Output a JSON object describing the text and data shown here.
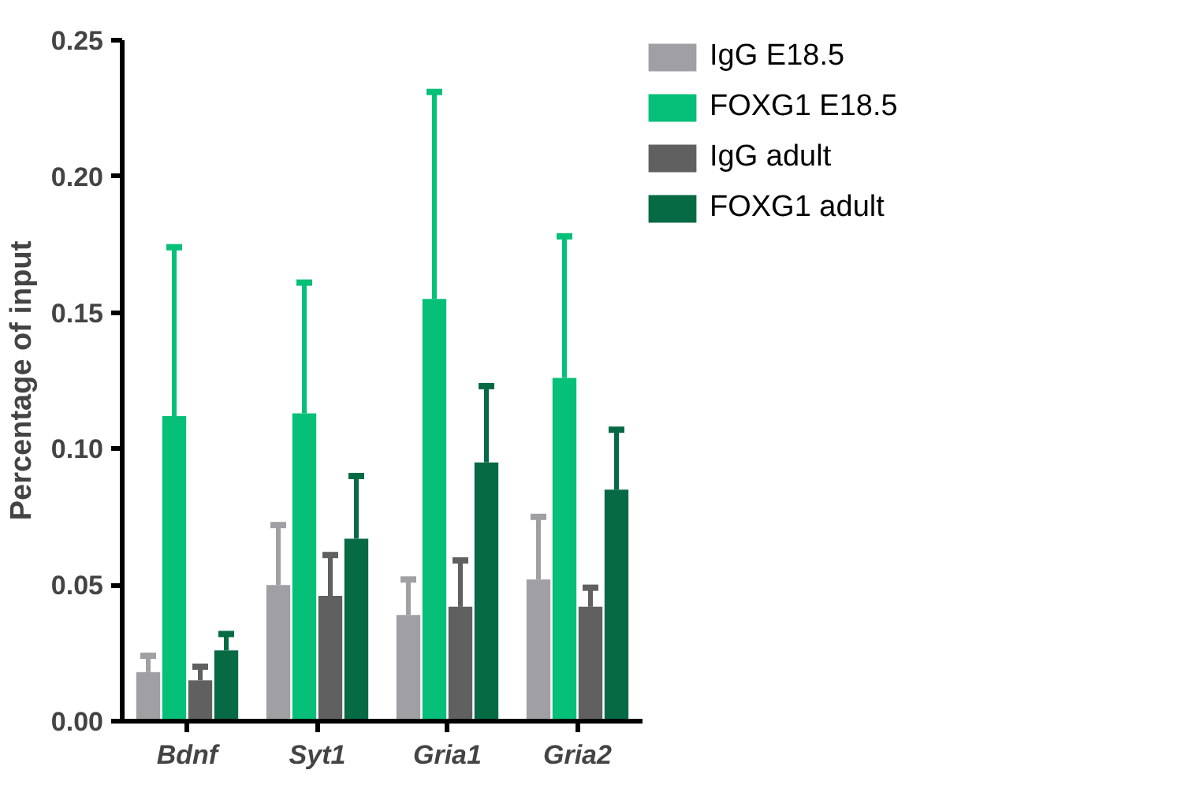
{
  "chart_data": {
    "type": "bar",
    "ylabel": "Percentage of input",
    "categories": [
      "Bdnf",
      "Syt1",
      "Gria1",
      "Gria2"
    ],
    "series": [
      {
        "name": "IgG E18.5",
        "color": "#a0a0a4",
        "values": [
          0.018,
          0.05,
          0.039,
          0.052
        ],
        "errors": [
          [
            0.018,
            0.024
          ],
          [
            0.05,
            0.072
          ],
          [
            0.039,
            0.052
          ],
          [
            0.052,
            0.075
          ]
        ]
      },
      {
        "name": "FOXG1 E18.5",
        "color": "#06bf78",
        "values": [
          0.112,
          0.113,
          0.155,
          0.126
        ],
        "errors": [
          [
            0.112,
            0.174
          ],
          [
            0.113,
            0.161
          ],
          [
            0.155,
            0.231
          ],
          [
            0.126,
            0.178
          ]
        ]
      },
      {
        "name": "IgG adult",
        "color": "#606060",
        "values": [
          0.015,
          0.046,
          0.042,
          0.042
        ],
        "errors": [
          [
            0.015,
            0.02
          ],
          [
            0.046,
            0.061
          ],
          [
            0.042,
            0.059
          ],
          [
            0.042,
            0.049
          ]
        ]
      },
      {
        "name": "FOXG1 adult",
        "color": "#066a44",
        "values": [
          0.026,
          0.067,
          0.095,
          0.085
        ],
        "errors": [
          [
            0.026,
            0.032
          ],
          [
            0.067,
            0.09
          ],
          [
            0.095,
            0.123
          ],
          [
            0.085,
            0.107
          ]
        ]
      }
    ],
    "ylim": [
      0,
      0.25
    ],
    "yticks": [
      {
        "value": 0,
        "label": "0.00"
      },
      {
        "value": 0.05,
        "label": "0.05"
      },
      {
        "value": 0.1,
        "label": "0.10"
      },
      {
        "value": 0.15,
        "label": "0.15"
      },
      {
        "value": 0.2,
        "label": "0.20"
      },
      {
        "value": 0.25,
        "label": "0.25"
      }
    ],
    "grid": false,
    "legend": "top right"
  }
}
